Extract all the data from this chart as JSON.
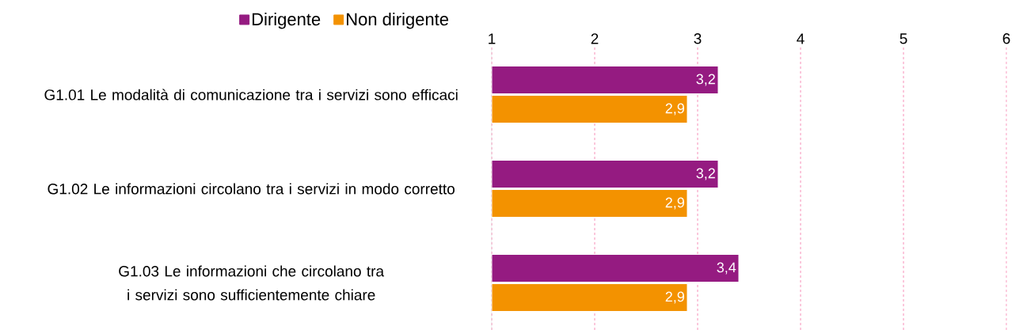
{
  "chart_data": {
    "type": "bar",
    "orientation": "horizontal",
    "categories": [
      "G1.01  Le modalità di comunicazione tra i servizi sono efficaci",
      "G1.02  Le informazioni circolano tra i servizi in modo corretto",
      "G1.03  Le informazioni che circolano tra i servizi sono sufficientemente chiare"
    ],
    "series": [
      {
        "name": "Dirigente",
        "color": "#951b81",
        "values": [
          3.2,
          3.2,
          3.4
        ],
        "value_labels": [
          "3,2",
          "3,2",
          "3,4"
        ]
      },
      {
        "name": "Non dirigente",
        "color": "#f39200",
        "values": [
          2.9,
          2.9,
          2.9
        ],
        "value_labels": [
          "2,9",
          "2,9",
          "2,9"
        ]
      }
    ],
    "xlim": [
      1,
      6
    ],
    "xticks": [
      1,
      2,
      3,
      4,
      5,
      6
    ],
    "grid": "x",
    "legend": "top left"
  }
}
